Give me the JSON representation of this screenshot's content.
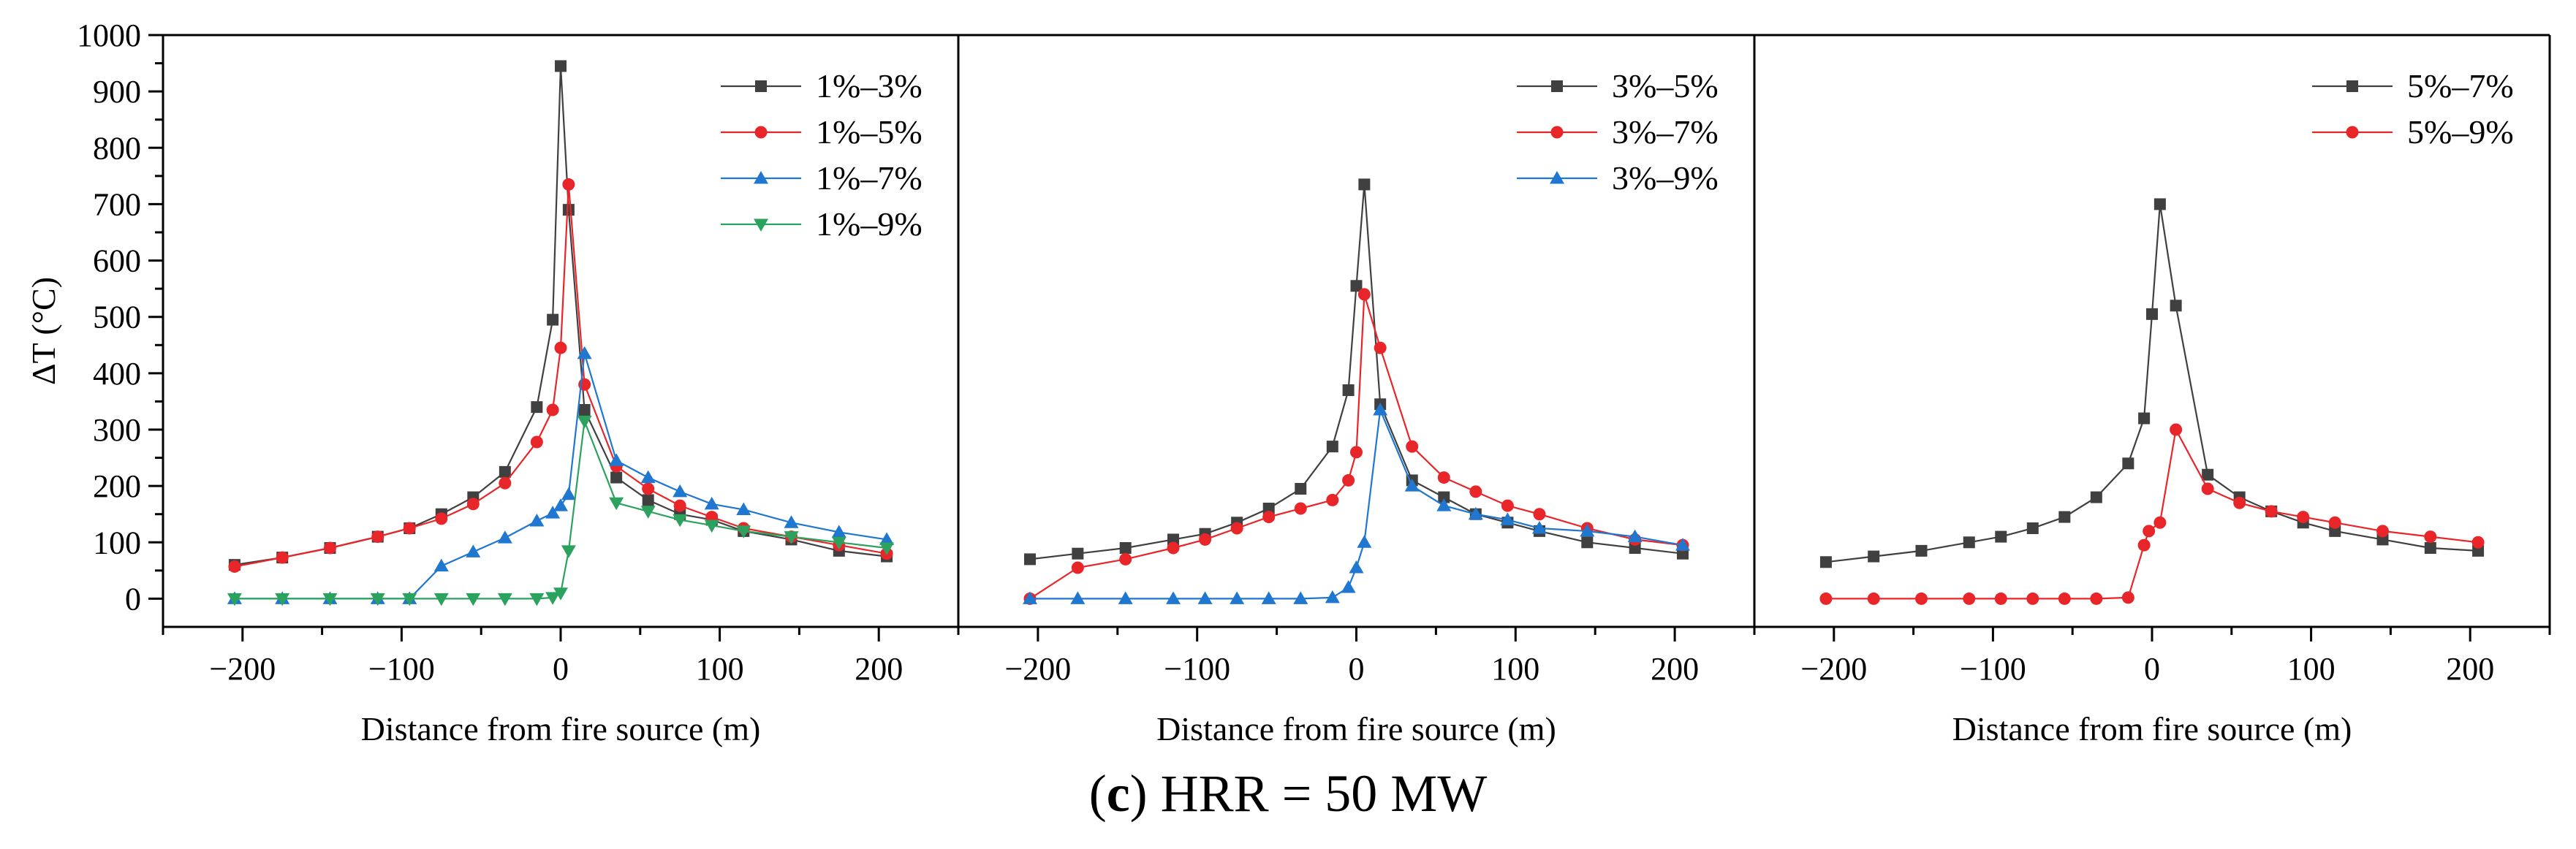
{
  "caption": {
    "letter": "c",
    "text": "HRR = 50 MW"
  },
  "y_axis_label": "ΔT (°C)",
  "chart_data": [
    {
      "type": "line",
      "xlabel": "Distance from fire source (m)",
      "ylabel": "ΔT (°C)",
      "xlim": [
        -250,
        250
      ],
      "ylim": [
        -50,
        1000
      ],
      "xticks": [
        -200,
        -100,
        0,
        100,
        200
      ],
      "yticks": [
        0,
        100,
        200,
        300,
        400,
        500,
        600,
        700,
        800,
        900,
        1000
      ],
      "legend_position": "top-right",
      "series": [
        {
          "name": "1%–3%",
          "color": "#404040",
          "marker": "square",
          "x": [
            -205,
            -175,
            -145,
            -115,
            -95,
            -75,
            -55,
            -35,
            -15,
            -5,
            0,
            5,
            15,
            35,
            55,
            75,
            95,
            115,
            145,
            175,
            205
          ],
          "y": [
            60,
            73,
            90,
            110,
            125,
            150,
            180,
            225,
            340,
            495,
            945,
            690,
            335,
            215,
            175,
            150,
            140,
            120,
            105,
            85,
            75
          ]
        },
        {
          "name": "1%–5%",
          "color": "#e8262a",
          "marker": "circle",
          "x": [
            -205,
            -175,
            -145,
            -115,
            -95,
            -75,
            -55,
            -35,
            -15,
            -5,
            0,
            5,
            15,
            35,
            55,
            75,
            95,
            115,
            145,
            175,
            205
          ],
          "y": [
            57,
            73,
            90,
            110,
            125,
            142,
            168,
            205,
            278,
            335,
            445,
            735,
            380,
            235,
            195,
            165,
            145,
            125,
            110,
            95,
            80
          ]
        },
        {
          "name": "1%–7%",
          "color": "#1f77d0",
          "marker": "triangle-up",
          "x": [
            -205,
            -175,
            -145,
            -115,
            -95,
            -75,
            -55,
            -35,
            -15,
            -5,
            0,
            5,
            15,
            35,
            55,
            75,
            95,
            115,
            145,
            175,
            205
          ],
          "y": [
            0,
            0,
            0,
            0,
            0,
            58,
            83,
            108,
            138,
            152,
            165,
            185,
            435,
            245,
            215,
            190,
            168,
            158,
            135,
            118,
            105
          ]
        },
        {
          "name": "1%–9%",
          "color": "#2ca25f",
          "marker": "triangle-down",
          "x": [
            -205,
            -175,
            -145,
            -115,
            -95,
            -75,
            -55,
            -35,
            -15,
            -5,
            0,
            5,
            15,
            35,
            55,
            75,
            95,
            115,
            145,
            175,
            205
          ],
          "y": [
            0,
            0,
            0,
            0,
            0,
            0,
            0,
            0,
            0,
            2,
            10,
            85,
            315,
            170,
            155,
            140,
            130,
            120,
            110,
            100,
            90
          ]
        }
      ]
    },
    {
      "type": "line",
      "xlabel": "Distance from fire source (m)",
      "xlim": [
        -250,
        250
      ],
      "ylim": [
        -50,
        1000
      ],
      "xticks": [
        -200,
        -100,
        0,
        100,
        200
      ],
      "legend_position": "top-right",
      "series": [
        {
          "name": "3%–5%",
          "color": "#404040",
          "marker": "square",
          "x": [
            -205,
            -175,
            -145,
            -115,
            -95,
            -75,
            -55,
            -35,
            -15,
            -5,
            0,
            5,
            15,
            35,
            55,
            75,
            95,
            115,
            145,
            175,
            205
          ],
          "y": [
            70,
            80,
            90,
            105,
            115,
            135,
            160,
            195,
            270,
            370,
            555,
            735,
            345,
            210,
            180,
            150,
            135,
            120,
            100,
            90,
            80
          ]
        },
        {
          "name": "3%–7%",
          "color": "#e8262a",
          "marker": "circle",
          "x": [
            -205,
            -175,
            -145,
            -115,
            -95,
            -75,
            -55,
            -35,
            -15,
            -5,
            0,
            5,
            15,
            35,
            55,
            75,
            95,
            115,
            145,
            175,
            205
          ],
          "y": [
            0,
            55,
            70,
            90,
            105,
            125,
            145,
            160,
            175,
            210,
            260,
            540,
            445,
            270,
            215,
            190,
            165,
            150,
            125,
            105,
            95
          ]
        },
        {
          "name": "3%–9%",
          "color": "#1f77d0",
          "marker": "triangle-up",
          "x": [
            -205,
            -175,
            -145,
            -115,
            -95,
            -75,
            -55,
            -35,
            -15,
            -5,
            0,
            5,
            15,
            35,
            55,
            75,
            95,
            115,
            145,
            175,
            205
          ],
          "y": [
            0,
            0,
            0,
            0,
            0,
            0,
            0,
            0,
            2,
            20,
            55,
            100,
            335,
            200,
            165,
            150,
            140,
            125,
            120,
            110,
            95
          ]
        }
      ]
    },
    {
      "type": "line",
      "xlabel": "Distance from fire source (m)",
      "xlim": [
        -250,
        250
      ],
      "ylim": [
        -50,
        1000
      ],
      "xticks": [
        -200,
        -100,
        0,
        100,
        200
      ],
      "legend_position": "top-right",
      "series": [
        {
          "name": "5%–7%",
          "color": "#404040",
          "marker": "square",
          "x": [
            -205,
            -175,
            -145,
            -115,
            -95,
            -75,
            -55,
            -35,
            -15,
            -5,
            0,
            5,
            15,
            35,
            55,
            75,
            95,
            115,
            145,
            175,
            205
          ],
          "y": [
            65,
            75,
            85,
            100,
            110,
            125,
            145,
            180,
            240,
            320,
            505,
            700,
            520,
            220,
            180,
            155,
            135,
            120,
            105,
            90,
            85
          ]
        },
        {
          "name": "5%–9%",
          "color": "#e8262a",
          "marker": "circle",
          "x": [
            -205,
            -175,
            -145,
            -115,
            -95,
            -75,
            -55,
            -35,
            -15,
            -5,
            -2,
            5,
            15,
            35,
            55,
            75,
            95,
            115,
            145,
            175,
            205
          ],
          "y": [
            0,
            0,
            0,
            0,
            0,
            0,
            0,
            0,
            2,
            95,
            120,
            135,
            300,
            195,
            170,
            155,
            145,
            135,
            120,
            110,
            100
          ]
        }
      ]
    }
  ]
}
